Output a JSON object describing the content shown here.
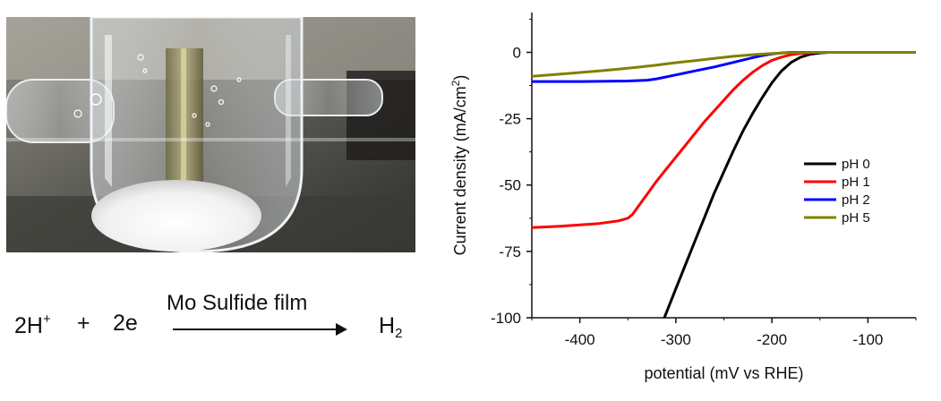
{
  "photo": {
    "description_icon": "electrochemical-cell-photo"
  },
  "equation": {
    "reactant_base": "2H",
    "reactant_sup": "+",
    "plus": "+",
    "electrons": "2e",
    "catalyst": "Mo Sulfide film",
    "product_base": "H",
    "product_sub": "2"
  },
  "chart_data": {
    "type": "line",
    "title": "",
    "xlabel": "potential (mV vs RHE)",
    "ylabel_main": "Current density (mA/cm",
    "ylabel_sup": "2",
    "ylabel_end": ")",
    "xlim": [
      -450,
      -50
    ],
    "ylim": [
      -100,
      15
    ],
    "xticks": [
      -400,
      -300,
      -200,
      -100
    ],
    "yticks": [
      0,
      -25,
      -50,
      -75,
      -100
    ],
    "legend_position": "right",
    "series": [
      {
        "name": "pH 0",
        "color": "#000000",
        "x": [
          -312,
          -300,
          -290,
          -280,
          -270,
          -260,
          -250,
          -240,
          -230,
          -220,
          -210,
          -200,
          -190,
          -180,
          -170,
          -160,
          -150,
          -140,
          -120,
          -100,
          -50
        ],
        "y": [
          -100,
          -89,
          -80,
          -71,
          -62,
          -53,
          -45,
          -37,
          -29.5,
          -23,
          -17,
          -11.5,
          -7,
          -3.8,
          -1.8,
          -0.7,
          -0.2,
          0,
          0,
          0,
          0
        ]
      },
      {
        "name": "pH 1",
        "color": "#ff0000",
        "x": [
          -450,
          -420,
          -400,
          -380,
          -360,
          -350,
          -345,
          -340,
          -330,
          -320,
          -310,
          -300,
          -290,
          -280,
          -270,
          -260,
          -250,
          -240,
          -230,
          -220,
          -210,
          -200,
          -190,
          -180,
          -170,
          -160,
          -150,
          -130,
          -50
        ],
        "y": [
          -66,
          -65.5,
          -65,
          -64.5,
          -63.5,
          -62.5,
          -61,
          -58.5,
          -53.5,
          -48.5,
          -44,
          -39.5,
          -35,
          -30.5,
          -26,
          -22,
          -18,
          -14,
          -10.5,
          -7.5,
          -5,
          -3,
          -1.8,
          -0.9,
          -0.4,
          -0.15,
          0,
          0,
          0
        ]
      },
      {
        "name": "pH 2",
        "color": "#0000ff",
        "x": [
          -450,
          -400,
          -350,
          -330,
          -320,
          -300,
          -280,
          -260,
          -240,
          -220,
          -210,
          -200,
          -190,
          -180,
          -170,
          -50
        ],
        "y": [
          -11,
          -11,
          -10.8,
          -10.5,
          -10,
          -8.5,
          -7,
          -5.5,
          -3.8,
          -2,
          -1.2,
          -0.6,
          -0.2,
          0,
          0,
          0
        ]
      },
      {
        "name": "pH 5",
        "color": "#808000",
        "x": [
          -450,
          -420,
          -400,
          -380,
          -360,
          -340,
          -320,
          -300,
          -280,
          -260,
          -240,
          -220,
          -200,
          -180,
          -160,
          -140,
          -50
        ],
        "y": [
          -9,
          -8.2,
          -7.6,
          -7,
          -6.3,
          -5.6,
          -4.8,
          -3.9,
          -3.1,
          -2.3,
          -1.5,
          -0.9,
          -0.4,
          -0.1,
          0,
          0,
          0
        ]
      }
    ]
  }
}
